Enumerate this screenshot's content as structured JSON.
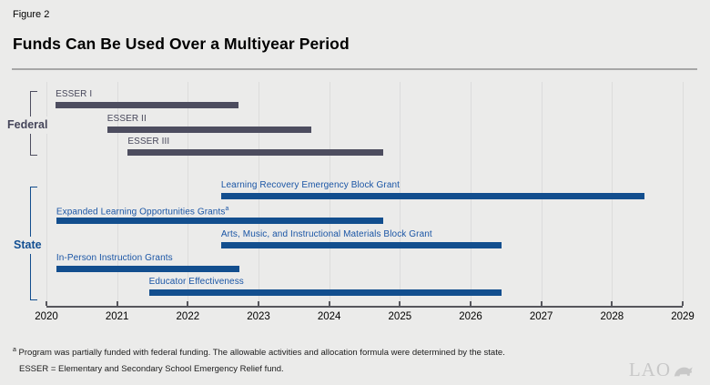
{
  "header": {
    "figure_label": "Figure 2",
    "title": "Funds Can Be Used Over a Multiyear Period"
  },
  "chart_data": {
    "type": "bar",
    "subtype": "gantt-timeline",
    "title": "Funds Can Be Used Over a Multiyear Period",
    "xlabel": "",
    "ylabel": "",
    "xlim": [
      2020,
      2029
    ],
    "x_ticks": [
      2020,
      2021,
      2022,
      2023,
      2024,
      2025,
      2026,
      2027,
      2028,
      2029
    ],
    "grid": "vertical",
    "legend_position": "none",
    "groups": [
      {
        "name": "Federal",
        "bar_color": "#4d4d5f",
        "label_color": "#47475a",
        "bars": [
          {
            "label": "ESSER I",
            "start": 2020.13,
            "end": 2022.72
          },
          {
            "label": "ESSER II",
            "start": 2020.86,
            "end": 2023.75
          },
          {
            "label": "ESSER III",
            "start": 2021.15,
            "end": 2024.76
          }
        ]
      },
      {
        "name": "State",
        "bar_color": "#124e8e",
        "label_color": "#1a55a5",
        "bars": [
          {
            "label": "Learning Recovery Emergency Block Grant",
            "start": 2022.47,
            "end": 2028.46
          },
          {
            "label": "Expanded Learning Opportunities Grants",
            "sup": "a",
            "start": 2020.14,
            "end": 2024.76
          },
          {
            "label": "Arts, Music, and Instructional Materials Block Grant",
            "start": 2022.47,
            "end": 2026.44
          },
          {
            "label": "In-Person Instruction Grants",
            "start": 2020.14,
            "end": 2022.73
          },
          {
            "label": "Educator Effectiveness",
            "start": 2021.45,
            "end": 2026.44
          }
        ]
      }
    ]
  },
  "footnotes": {
    "note_a_sup": "a",
    "note_a_text": " Program was partially funded with federal funding. The allowable activities and allocation formula were determined by the state.",
    "esser_text": "ESSER = Elementary and Secondary School Emergency Relief fund."
  },
  "logo": {
    "text": "LAO"
  },
  "colors": {
    "background": "#ebebea",
    "axis": "#56565c",
    "gridline": "#dcdcdc",
    "divider": "#a6a6a6",
    "federal_bar": "#4d4d5f",
    "state_bar": "#124e8e"
  }
}
